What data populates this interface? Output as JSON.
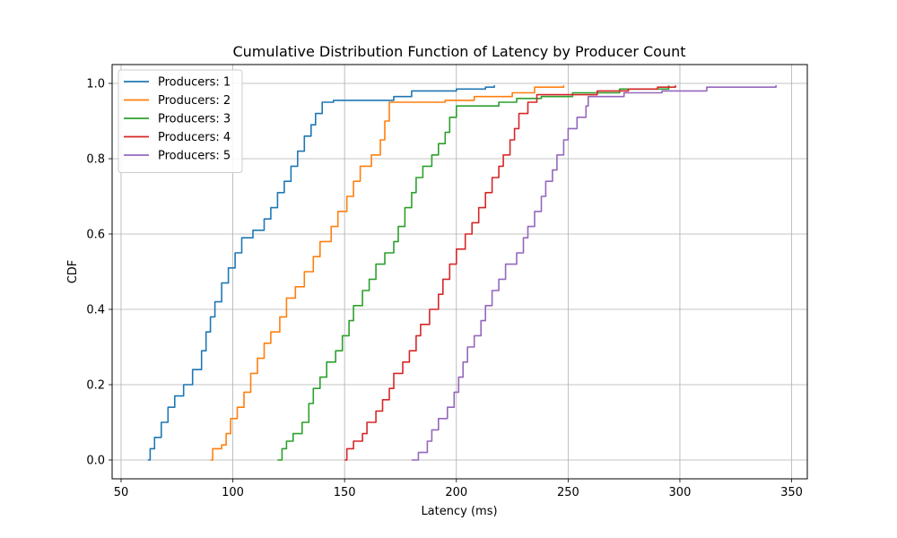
{
  "chart_data": {
    "type": "line",
    "title": "Cumulative Distribution Function of Latency by Producer Count",
    "xlabel": "Latency (ms)",
    "ylabel": "CDF",
    "xlim": [
      46,
      357
    ],
    "ylim": [
      -0.05,
      1.05
    ],
    "xticks": [
      50,
      100,
      150,
      200,
      250,
      300,
      350
    ],
    "yticks": [
      0.0,
      0.2,
      0.4,
      0.6,
      0.8,
      1.0
    ],
    "xtick_labels": [
      "50",
      "100",
      "150",
      "200",
      "250",
      "300",
      "350"
    ],
    "ytick_labels": [
      "0.0",
      "0.2",
      "0.4",
      "0.6",
      "0.8",
      "1.0"
    ],
    "grid": true,
    "legend_position": "top-left",
    "step_plot": true,
    "series": [
      {
        "name": "Producers: 1",
        "color": "#1f77b4",
        "points": [
          [
            62,
            0.0
          ],
          [
            63,
            0.03
          ],
          [
            65,
            0.06
          ],
          [
            68,
            0.1
          ],
          [
            71,
            0.14
          ],
          [
            74,
            0.17
          ],
          [
            78,
            0.2
          ],
          [
            82,
            0.24
          ],
          [
            86,
            0.29
          ],
          [
            88,
            0.34
          ],
          [
            90,
            0.38
          ],
          [
            92,
            0.42
          ],
          [
            95,
            0.47
          ],
          [
            98,
            0.51
          ],
          [
            101,
            0.55
          ],
          [
            104,
            0.59
          ],
          [
            109,
            0.61
          ],
          [
            114,
            0.64
          ],
          [
            117,
            0.67
          ],
          [
            120,
            0.71
          ],
          [
            123,
            0.74
          ],
          [
            126,
            0.78
          ],
          [
            129,
            0.82
          ],
          [
            132,
            0.86
          ],
          [
            135,
            0.89
          ],
          [
            137,
            0.92
          ],
          [
            140,
            0.95
          ],
          [
            145,
            0.955
          ],
          [
            172,
            0.965
          ],
          [
            180,
            0.98
          ],
          [
            200,
            0.985
          ],
          [
            213,
            0.99
          ],
          [
            217,
            0.995
          ]
        ]
      },
      {
        "name": "Producers: 2",
        "color": "#ff7f0e",
        "points": [
          [
            90,
            0.0
          ],
          [
            91,
            0.03
          ],
          [
            95,
            0.04
          ],
          [
            97,
            0.07
          ],
          [
            99,
            0.11
          ],
          [
            102,
            0.14
          ],
          [
            105,
            0.18
          ],
          [
            108,
            0.23
          ],
          [
            111,
            0.27
          ],
          [
            114,
            0.31
          ],
          [
            117,
            0.34
          ],
          [
            121,
            0.38
          ],
          [
            124,
            0.43
          ],
          [
            128,
            0.46
          ],
          [
            132,
            0.5
          ],
          [
            136,
            0.54
          ],
          [
            139,
            0.58
          ],
          [
            144,
            0.62
          ],
          [
            147,
            0.66
          ],
          [
            151,
            0.7
          ],
          [
            154,
            0.74
          ],
          [
            157,
            0.78
          ],
          [
            162,
            0.81
          ],
          [
            166,
            0.85
          ],
          [
            168,
            0.9
          ],
          [
            170,
            0.95
          ],
          [
            195,
            0.955
          ],
          [
            208,
            0.965
          ],
          [
            225,
            0.975
          ],
          [
            235,
            0.99
          ],
          [
            248,
            0.995
          ]
        ]
      },
      {
        "name": "Producers: 3",
        "color": "#2ca02c",
        "points": [
          [
            120,
            0.0
          ],
          [
            122,
            0.03
          ],
          [
            124,
            0.05
          ],
          [
            127,
            0.07
          ],
          [
            131,
            0.1
          ],
          [
            134,
            0.15
          ],
          [
            136,
            0.19
          ],
          [
            139,
            0.22
          ],
          [
            142,
            0.26
          ],
          [
            146,
            0.29
          ],
          [
            149,
            0.33
          ],
          [
            152,
            0.37
          ],
          [
            154,
            0.41
          ],
          [
            158,
            0.45
          ],
          [
            161,
            0.48
          ],
          [
            164,
            0.52
          ],
          [
            168,
            0.55
          ],
          [
            172,
            0.58
          ],
          [
            174,
            0.62
          ],
          [
            177,
            0.67
          ],
          [
            180,
            0.71
          ],
          [
            182,
            0.75
          ],
          [
            185,
            0.78
          ],
          [
            189,
            0.81
          ],
          [
            192,
            0.84
          ],
          [
            195,
            0.87
          ],
          [
            197,
            0.91
          ],
          [
            200,
            0.94
          ],
          [
            219,
            0.95
          ],
          [
            227,
            0.96
          ],
          [
            238,
            0.965
          ],
          [
            252,
            0.975
          ],
          [
            273,
            0.985
          ],
          [
            295,
            0.995
          ]
        ]
      },
      {
        "name": "Producers: 4",
        "color": "#d62728",
        "points": [
          [
            150,
            0.0
          ],
          [
            151,
            0.03
          ],
          [
            154,
            0.05
          ],
          [
            158,
            0.07
          ],
          [
            160,
            0.1
          ],
          [
            164,
            0.13
          ],
          [
            167,
            0.16
          ],
          [
            170,
            0.19
          ],
          [
            172,
            0.23
          ],
          [
            176,
            0.26
          ],
          [
            179,
            0.29
          ],
          [
            182,
            0.33
          ],
          [
            184,
            0.36
          ],
          [
            188,
            0.4
          ],
          [
            192,
            0.44
          ],
          [
            194,
            0.48
          ],
          [
            197,
            0.52
          ],
          [
            200,
            0.56
          ],
          [
            204,
            0.6
          ],
          [
            207,
            0.63
          ],
          [
            210,
            0.67
          ],
          [
            213,
            0.71
          ],
          [
            216,
            0.75
          ],
          [
            219,
            0.78
          ],
          [
            221,
            0.81
          ],
          [
            224,
            0.85
          ],
          [
            226,
            0.88
          ],
          [
            228,
            0.92
          ],
          [
            232,
            0.95
          ],
          [
            236,
            0.97
          ],
          [
            263,
            0.98
          ],
          [
            277,
            0.985
          ],
          [
            290,
            0.99
          ],
          [
            298,
            0.995
          ]
        ]
      },
      {
        "name": "Producers: 5",
        "color": "#9467bd",
        "points": [
          [
            180,
            0.0
          ],
          [
            183,
            0.02
          ],
          [
            187,
            0.05
          ],
          [
            189,
            0.08
          ],
          [
            192,
            0.11
          ],
          [
            196,
            0.14
          ],
          [
            199,
            0.18
          ],
          [
            201,
            0.22
          ],
          [
            203,
            0.26
          ],
          [
            205,
            0.3
          ],
          [
            208,
            0.33
          ],
          [
            211,
            0.37
          ],
          [
            213,
            0.41
          ],
          [
            216,
            0.45
          ],
          [
            219,
            0.48
          ],
          [
            222,
            0.52
          ],
          [
            227,
            0.55
          ],
          [
            230,
            0.59
          ],
          [
            232,
            0.62
          ],
          [
            235,
            0.66
          ],
          [
            238,
            0.7
          ],
          [
            240,
            0.74
          ],
          [
            243,
            0.77
          ],
          [
            245,
            0.81
          ],
          [
            248,
            0.85
          ],
          [
            250,
            0.88
          ],
          [
            254,
            0.91
          ],
          [
            258,
            0.94
          ],
          [
            259,
            0.965
          ],
          [
            275,
            0.975
          ],
          [
            292,
            0.98
          ],
          [
            312,
            0.99
          ],
          [
            343,
            0.995
          ]
        ]
      }
    ]
  }
}
